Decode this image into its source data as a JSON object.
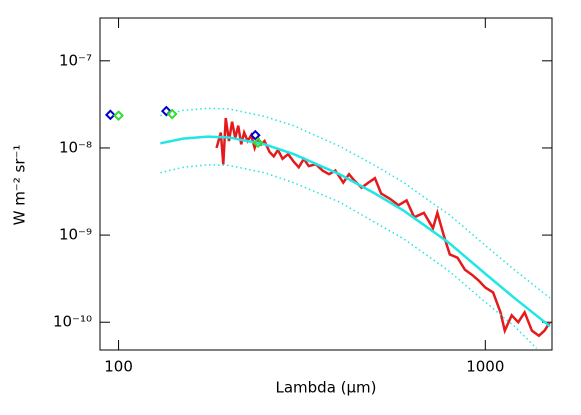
{
  "chart_data": {
    "type": "line",
    "xlabel": "Lambda (μm)",
    "ylabel": "W m⁻² sr⁻¹",
    "xscale": "log",
    "yscale": "log",
    "xlim": [
      89,
      1520
    ],
    "ylim": [
      4.8e-11,
      3.1e-07
    ],
    "xticks": [
      100,
      1000
    ],
    "yticks": [
      {
        "value": 1e-10,
        "label": "10⁻¹⁰"
      },
      {
        "value": 1e-09,
        "label": "10⁻⁹"
      },
      {
        "value": 1e-08,
        "label": "10⁻⁸"
      },
      {
        "value": 1e-07,
        "label": "10⁻⁷"
      }
    ],
    "series": [
      {
        "color": "#e41a1c",
        "style": "solid",
        "width": 2.5,
        "x": [
          185,
          190,
          193,
          196,
          200,
          204,
          208,
          212,
          216,
          220,
          225,
          230,
          235,
          240,
          245,
          250,
          258,
          265,
          272,
          280,
          290,
          300,
          310,
          320,
          330,
          345,
          360,
          375,
          390,
          410,
          425,
          440,
          460,
          480,
          500,
          520,
          550,
          580,
          610,
          640,
          680,
          720,
          740,
          770,
          800,
          840,
          880,
          920,
          960,
          1000,
          1050,
          1100,
          1130,
          1180,
          1230,
          1280,
          1340,
          1400,
          1450,
          1500
        ],
        "values": [
          1e-08,
          1.5e-08,
          6.5e-09,
          2.2e-08,
          1.2e-08,
          2e-08,
          1.3e-08,
          1.8e-08,
          1.1e-08,
          1.5e-08,
          1.2e-08,
          1.4e-08,
          1e-08,
          1.3e-08,
          1.1e-08,
          1.2e-08,
          9e-09,
          8e-09,
          9.5e-09,
          7.5e-09,
          8.5e-09,
          7e-09,
          6e-09,
          7.5e-09,
          6.2e-09,
          6.5e-09,
          5.5e-09,
          5e-09,
          5.5e-09,
          4e-09,
          5e-09,
          4.2e-09,
          3.5e-09,
          4e-09,
          4.5e-09,
          3e-09,
          2.6e-09,
          2.2e-09,
          2.5e-09,
          1.6e-09,
          1.8e-09,
          1.2e-09,
          1.8e-09,
          1e-09,
          6e-10,
          5.5e-10,
          4e-10,
          3.5e-10,
          3e-10,
          2.5e-10,
          2.2e-10,
          1.3e-10,
          8e-11,
          1.2e-10,
          1e-10,
          1.3e-10,
          8e-11,
          7e-11,
          8e-11,
          1e-10
        ]
      },
      {
        "color": "#22e5e5",
        "style": "solid",
        "width": 2.5,
        "x": [
          130,
          150,
          175,
          200,
          250,
          300,
          400,
          500,
          600,
          700,
          800,
          1000,
          1200,
          1500
        ],
        "values": [
          1.13e-08,
          1.28e-08,
          1.35e-08,
          1.32e-08,
          1.1e-08,
          8.5e-09,
          5e-09,
          3e-09,
          1.9e-09,
          1.2e-09,
          8e-10,
          3.6e-10,
          1.9e-10,
          9e-11
        ]
      },
      {
        "color": "#22e5e5",
        "style": "dotted",
        "width": 1.5,
        "x": [
          130,
          150,
          175,
          200,
          250,
          300,
          400,
          500,
          600,
          700,
          800,
          1000,
          1200,
          1500
        ],
        "values": [
          2.35e-08,
          2.7e-08,
          2.85e-08,
          2.8e-08,
          2.3e-08,
          1.8e-08,
          1.05e-08,
          6.3e-09,
          4e-09,
          2.5e-09,
          1.7e-09,
          7.6e-10,
          4e-10,
          1.9e-10
        ]
      },
      {
        "color": "#22e5e5",
        "style": "dotted",
        "width": 1.5,
        "x": [
          130,
          150,
          175,
          200,
          250,
          300,
          400,
          500,
          600,
          700,
          800,
          1000,
          1200,
          1380
        ],
        "values": [
          5.2e-09,
          6e-09,
          6.4e-09,
          6.3e-09,
          5.2e-09,
          4e-09,
          2.4e-09,
          1.4e-09,
          9e-10,
          5.7e-10,
          3.8e-10,
          1.7e-10,
          9e-11,
          5e-11
        ]
      },
      {
        "color": "#0000cc",
        "style": "none",
        "marker": "diamond",
        "x": [
          95,
          135,
          236
        ],
        "values": [
          2.4e-08,
          2.65e-08,
          1.4e-08
        ]
      },
      {
        "color": "#33dd33",
        "style": "none",
        "marker": "diamond",
        "x": [
          100,
          140,
          240
        ],
        "values": [
          2.35e-08,
          2.45e-08,
          1.15e-08
        ]
      }
    ]
  }
}
